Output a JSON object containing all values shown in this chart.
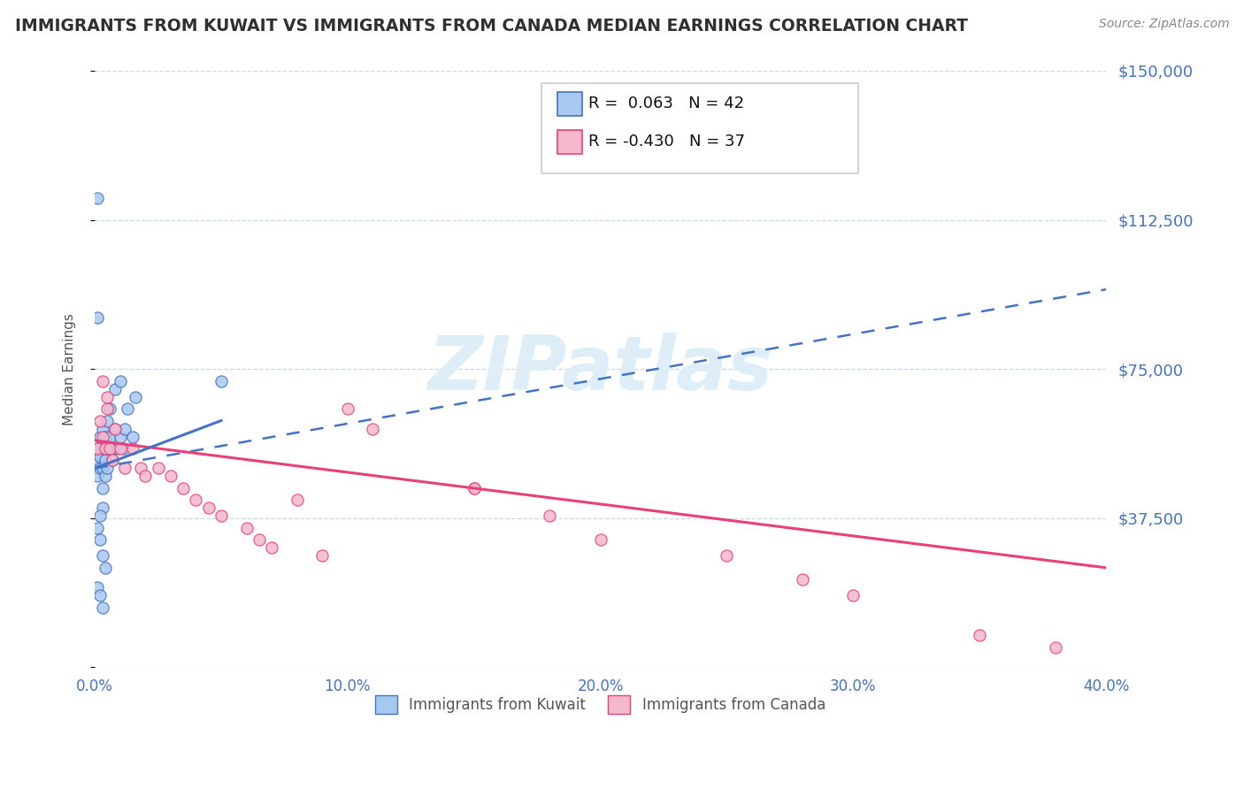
{
  "title": "IMMIGRANTS FROM KUWAIT VS IMMIGRANTS FROM CANADA MEDIAN EARNINGS CORRELATION CHART",
  "source": "Source: ZipAtlas.com",
  "ylabel_label": "Median Earnings",
  "xlim": [
    0.0,
    0.4
  ],
  "ylim": [
    0,
    150000
  ],
  "yticks": [
    0,
    37500,
    75000,
    112500,
    150000
  ],
  "ytick_labels": [
    "",
    "$37,500",
    "$75,000",
    "$112,500",
    "$150,000"
  ],
  "xticks": [
    0.0,
    0.1,
    0.2,
    0.3,
    0.4
  ],
  "xtick_labels": [
    "0.0%",
    "10.0%",
    "20.0%",
    "30.0%",
    "40.0%"
  ],
  "kuwait_dot_color": "#a8c8f0",
  "kuwait_edge_color": "#4472c4",
  "canada_dot_color": "#f4b8cc",
  "canada_edge_color": "#e8407a",
  "kuwait_trend_color": "#4472c4",
  "canada_trend_color": "#e8407a",
  "kuwait_trend_dash": "dashed",
  "grid_color": "#c8d8e4",
  "bg_color": "#ffffff",
  "axis_color": "#4472c4",
  "title_color": "#303030",
  "watermark_color": "#ddeef8",
  "kuwait_trend_endpoints": [
    0.0,
    50000,
    0.4,
    95000
  ],
  "canada_trend_endpoints": [
    0.0,
    57000,
    0.4,
    25000
  ],
  "kuwait_x": [
    0.001,
    0.001,
    0.001,
    0.002,
    0.002,
    0.002,
    0.003,
    0.003,
    0.003,
    0.003,
    0.004,
    0.004,
    0.004,
    0.005,
    0.005,
    0.005,
    0.006,
    0.006,
    0.007,
    0.007,
    0.008,
    0.008,
    0.009,
    0.01,
    0.01,
    0.011,
    0.012,
    0.013,
    0.015,
    0.016,
    0.001,
    0.002,
    0.003,
    0.004,
    0.001,
    0.002,
    0.003,
    0.05,
    0.003,
    0.002,
    0.001,
    0.001
  ],
  "kuwait_y": [
    55000,
    48000,
    52000,
    58000,
    50000,
    53000,
    60000,
    55000,
    50000,
    45000,
    58000,
    52000,
    48000,
    62000,
    55000,
    50000,
    65000,
    58000,
    52000,
    55000,
    70000,
    60000,
    55000,
    72000,
    58000,
    55000,
    60000,
    65000,
    58000,
    68000,
    35000,
    32000,
    28000,
    25000,
    20000,
    18000,
    15000,
    72000,
    40000,
    38000,
    118000,
    88000
  ],
  "canada_x": [
    0.001,
    0.002,
    0.003,
    0.004,
    0.005,
    0.006,
    0.007,
    0.008,
    0.01,
    0.012,
    0.015,
    0.018,
    0.02,
    0.025,
    0.03,
    0.035,
    0.04,
    0.045,
    0.05,
    0.06,
    0.065,
    0.07,
    0.08,
    0.09,
    0.1,
    0.11,
    0.15,
    0.18,
    0.2,
    0.25,
    0.28,
    0.3,
    0.35,
    0.38,
    0.003,
    0.005,
    0.15
  ],
  "canada_y": [
    55000,
    62000,
    58000,
    55000,
    65000,
    55000,
    52000,
    60000,
    55000,
    50000,
    55000,
    50000,
    48000,
    50000,
    48000,
    45000,
    42000,
    40000,
    38000,
    35000,
    32000,
    30000,
    42000,
    28000,
    65000,
    60000,
    45000,
    38000,
    32000,
    28000,
    22000,
    18000,
    8000,
    5000,
    72000,
    68000,
    45000
  ]
}
